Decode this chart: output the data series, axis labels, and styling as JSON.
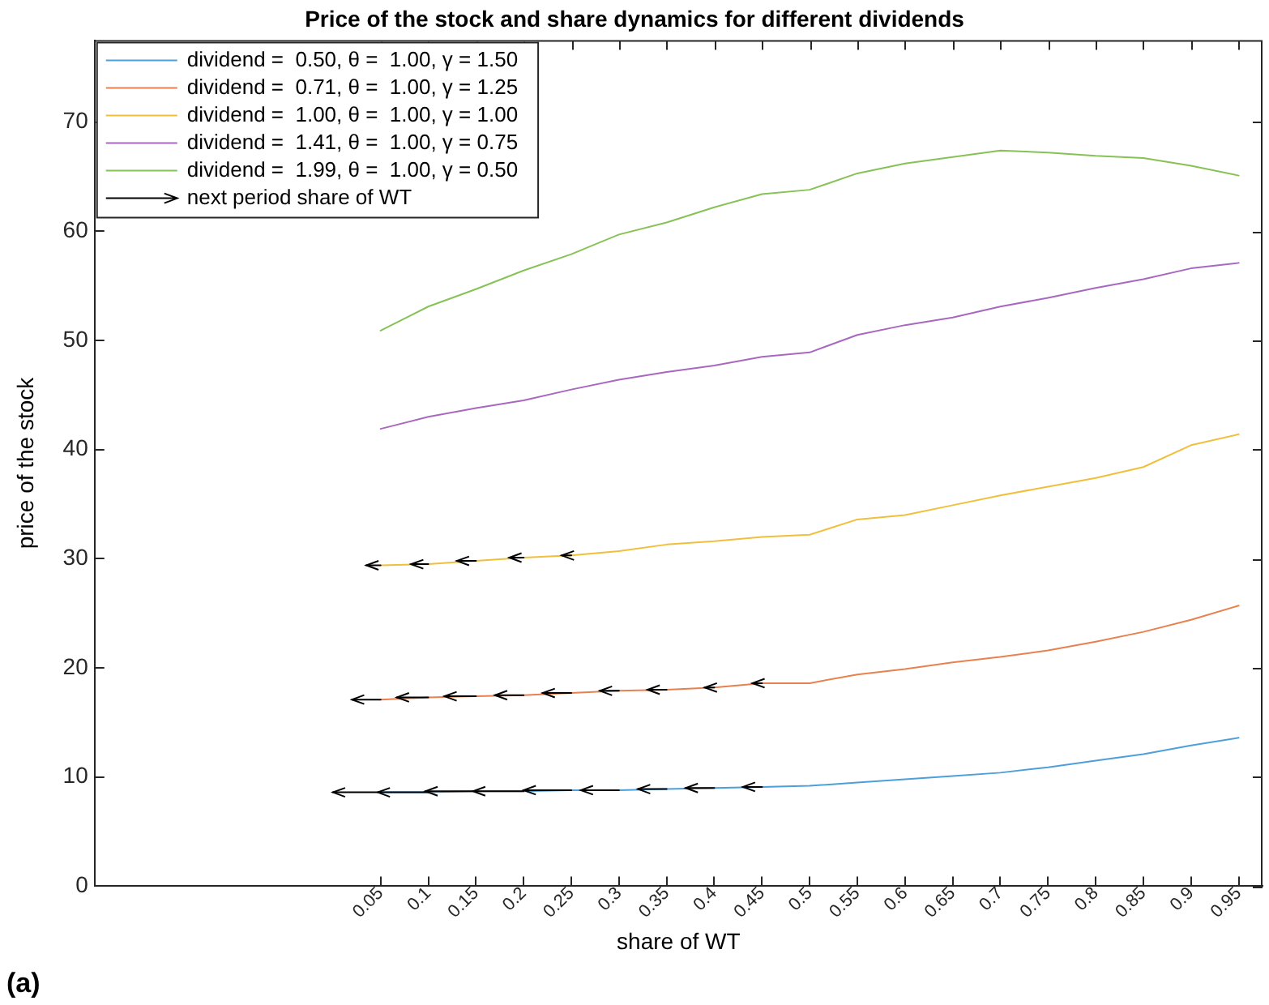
{
  "chart_data": {
    "type": "line",
    "title": "Price of the stock and share dynamics for different dividends",
    "xlabel": "share of WT",
    "ylabel": "price of the stock",
    "annotations": [
      "(a)"
    ],
    "x": [
      0.05,
      0.1,
      0.15,
      0.2,
      0.25,
      0.3,
      0.35,
      0.4,
      0.45,
      0.5,
      0.55,
      0.6,
      0.65,
      0.7,
      0.75,
      0.8,
      0.85,
      0.9,
      0.95
    ],
    "xlim": [
      -0.25,
      0.975
    ],
    "xticks": [
      0.05,
      0.1,
      0.15,
      0.2,
      0.25,
      0.3,
      0.35,
      0.4,
      0.45,
      0.5,
      0.55,
      0.6,
      0.65,
      0.7,
      0.75,
      0.8,
      0.85,
      0.9,
      0.95
    ],
    "ylim": [
      0,
      77.5
    ],
    "yticks": [
      0,
      10,
      20,
      30,
      40,
      50,
      60,
      70
    ],
    "grid": false,
    "legend": "top left",
    "marker": "none",
    "series": [
      {
        "name": "dividend =  0.50, θ =  1.00, γ = 1.50",
        "color": "#4d9fdb",
        "values": [
          8.6,
          8.6,
          8.7,
          8.7,
          8.8,
          8.8,
          8.9,
          9.0,
          9.1,
          9.2,
          9.5,
          9.8,
          10.1,
          10.4,
          10.9,
          11.5,
          12.1,
          12.9,
          13.6
        ]
      },
      {
        "name": "dividend =  0.71, θ =  1.00, γ = 1.25",
        "color": "#e8804f",
        "values": [
          17.1,
          17.3,
          17.4,
          17.5,
          17.7,
          17.9,
          18.0,
          18.2,
          18.6,
          18.6,
          19.4,
          19.9,
          20.5,
          21.0,
          21.6,
          22.4,
          23.3,
          24.4,
          25.7
        ]
      },
      {
        "name": "dividend =  1.00, θ =  1.00, γ = 1.00",
        "color": "#f0bf3c",
        "values": [
          29.4,
          29.5,
          29.8,
          30.1,
          30.3,
          30.7,
          31.3,
          31.6,
          32.0,
          32.2,
          33.6,
          34.0,
          34.9,
          35.8,
          36.6,
          37.4,
          38.4,
          40.4,
          41.4
        ]
      },
      {
        "name": "dividend =  1.41, θ =  1.00, γ = 0.75",
        "color": "#a868bf",
        "values": [
          41.9,
          43.0,
          43.8,
          44.5,
          45.5,
          46.4,
          47.1,
          47.7,
          48.5,
          48.9,
          50.5,
          51.4,
          52.1,
          53.1,
          53.9,
          54.8,
          55.6,
          56.6,
          57.1
        ]
      },
      {
        "name": "dividend =  1.99, θ =  1.00, γ = 0.50",
        "color": "#86c256",
        "values": [
          50.9,
          53.1,
          54.7,
          56.4,
          57.9,
          59.7,
          60.8,
          62.2,
          63.4,
          63.8,
          65.3,
          66.2,
          66.8,
          67.4,
          67.2,
          66.9,
          66.7,
          66.0,
          65.1
        ]
      },
      {
        "name": "next period share of WT",
        "color": "#000000",
        "type": "line",
        "x": [
          0.05,
          0.0,
          null,
          0.1,
          0.047,
          null,
          0.15,
          0.097,
          null,
          0.2,
          0.147,
          null,
          0.25,
          0.2,
          null,
          0.3,
          0.26,
          null,
          0.35,
          0.32,
          null,
          0.4,
          0.37,
          null,
          0.45,
          0.43,
          null,
          0.05,
          0.02,
          null,
          0.1,
          0.067,
          null,
          0.15,
          0.117,
          null,
          0.2,
          0.17,
          null,
          0.25,
          0.22,
          null,
          0.3,
          0.28,
          null,
          0.35,
          0.33,
          null,
          0.4,
          0.39,
          null,
          0.45,
          0.44,
          null,
          0.05,
          0.035,
          null,
          0.1,
          0.082,
          null,
          0.15,
          0.13,
          null,
          0.2,
          0.185,
          null,
          0.25,
          0.24
        ],
        "values": [
          8.6,
          8.6,
          null,
          8.6,
          8.6,
          null,
          8.7,
          8.7,
          null,
          8.7,
          8.7,
          null,
          8.8,
          8.8,
          null,
          8.8,
          8.8,
          null,
          8.9,
          8.9,
          null,
          9.0,
          9.0,
          null,
          9.1,
          9.1,
          null,
          17.1,
          17.1,
          null,
          17.3,
          17.3,
          null,
          17.4,
          17.4,
          null,
          17.5,
          17.5,
          null,
          17.7,
          17.7,
          null,
          17.9,
          17.9,
          null,
          18.0,
          18.0,
          null,
          18.2,
          18.2,
          null,
          18.6,
          18.6,
          null,
          29.4,
          29.4,
          null,
          29.5,
          29.5,
          null,
          29.8,
          29.8,
          null,
          30.1,
          30.1,
          null,
          30.3,
          30.3
        ]
      }
    ]
  }
}
